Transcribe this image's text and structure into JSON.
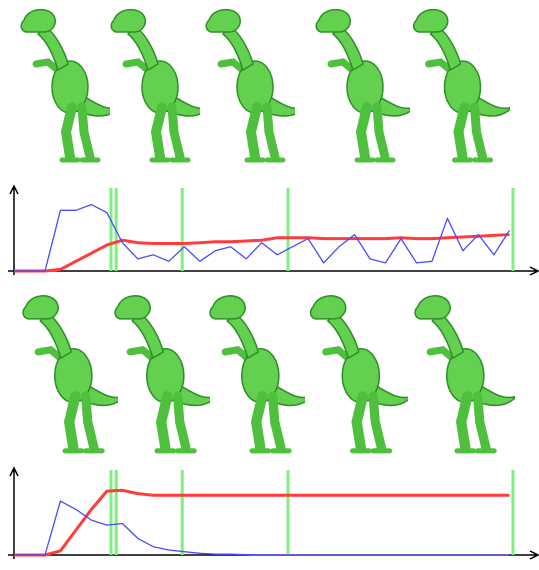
{
  "chart_data": [
    {
      "type": "line",
      "x": [
        0,
        3,
        6,
        9,
        12,
        15,
        18,
        21,
        24,
        27,
        30,
        33,
        36,
        39,
        42,
        45,
        48,
        51,
        54,
        57,
        60,
        63,
        66,
        69,
        72,
        75,
        78,
        81,
        84,
        87,
        90,
        93,
        96
      ],
      "xlim": [
        0,
        100
      ],
      "ylim": [
        0,
        1
      ],
      "series": [
        {
          "color": "#ff3b3b",
          "values": [
            0,
            0,
            0,
            0.02,
            0.12,
            0.22,
            0.32,
            0.38,
            0.35,
            0.34,
            0.34,
            0.34,
            0.35,
            0.36,
            0.36,
            0.37,
            0.38,
            0.41,
            0.41,
            0.41,
            0.4,
            0.4,
            0.4,
            0.4,
            0.4,
            0.41,
            0.4,
            0.4,
            0.41,
            0.42,
            0.43,
            0.44,
            0.45
          ]
        },
        {
          "color": "#4a4aff",
          "values": [
            0,
            0,
            0,
            0.75,
            0.75,
            0.82,
            0.72,
            0.35,
            0.15,
            0.2,
            0.12,
            0.3,
            0.12,
            0.25,
            0.3,
            0.15,
            0.35,
            0.2,
            0.3,
            0.4,
            0.1,
            0.3,
            0.45,
            0.15,
            0.1,
            0.4,
            0.1,
            0.12,
            0.65,
            0.25,
            0.45,
            0.2,
            0.5
          ]
        }
      ],
      "vlines": [
        18.8,
        19.8,
        32.6,
        53.1,
        96.7
      ],
      "vline_color": "#7ef07e"
    },
    {
      "type": "line",
      "x": [
        0,
        3,
        6,
        9,
        12,
        15,
        18,
        21,
        24,
        27,
        30,
        33,
        36,
        39,
        42,
        45,
        48,
        51,
        54,
        57,
        60,
        63,
        66,
        69,
        72,
        75,
        78,
        81,
        84,
        87,
        90,
        93,
        96
      ],
      "xlim": [
        0,
        100
      ],
      "ylim": [
        0,
        1
      ],
      "series": [
        {
          "color": "#ff3b3b",
          "values": [
            0,
            0,
            0,
            0.05,
            0.3,
            0.55,
            0.77,
            0.78,
            0.74,
            0.72,
            0.72,
            0.72,
            0.72,
            0.72,
            0.72,
            0.72,
            0.72,
            0.72,
            0.72,
            0.72,
            0.72,
            0.72,
            0.72,
            0.72,
            0.72,
            0.72,
            0.72,
            0.72,
            0.72,
            0.72,
            0.72,
            0.72,
            0.72
          ]
        },
        {
          "color": "#4a4aff",
          "values": [
            0,
            0,
            0,
            0.65,
            0.55,
            0.42,
            0.36,
            0.38,
            0.2,
            0.1,
            0.06,
            0.04,
            0.02,
            0.01,
            0.01,
            0.005,
            0,
            0,
            0,
            0,
            0,
            0,
            0,
            0,
            0,
            0,
            0,
            0,
            0,
            0,
            0,
            0,
            0
          ]
        }
      ],
      "vlines": [
        18.8,
        19.8,
        32.6,
        53.1,
        96.7
      ],
      "vline_color": "#7ef07e"
    }
  ]
}
